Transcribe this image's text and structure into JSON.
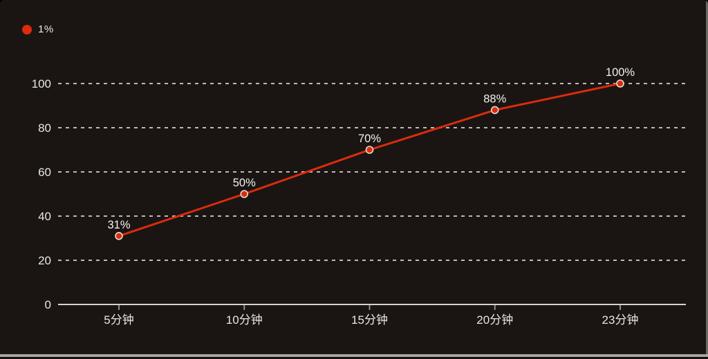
{
  "legend": {
    "label": "1%",
    "marker": "circle"
  },
  "colors": {
    "background": "#1a1512",
    "series": "#dc2b0d",
    "marker_fill": "#dc2b0d",
    "marker_stroke": "#e3ddd6",
    "grid": "#cfccc9",
    "axis": "#d6d3d0",
    "tick": "#918d89",
    "axis_text": "#e9e7e4",
    "data_label_text": "#f4f2f0"
  },
  "chart_data": {
    "type": "line",
    "title": "",
    "xlabel": "",
    "ylabel": "",
    "categories": [
      "5分钟",
      "10分钟",
      "15分钟",
      "20分钟",
      "23分钟"
    ],
    "series": [
      {
        "name": "1%",
        "values": [
          31,
          50,
          70,
          88,
          100
        ],
        "data_labels": [
          "31%",
          "50%",
          "70%",
          "88%",
          "100%"
        ]
      }
    ],
    "y_ticks": [
      0,
      20,
      40,
      60,
      80,
      100
    ],
    "ylim": [
      0,
      100
    ],
    "grid": "horizontal-dashed",
    "legend_position": "top-left"
  }
}
